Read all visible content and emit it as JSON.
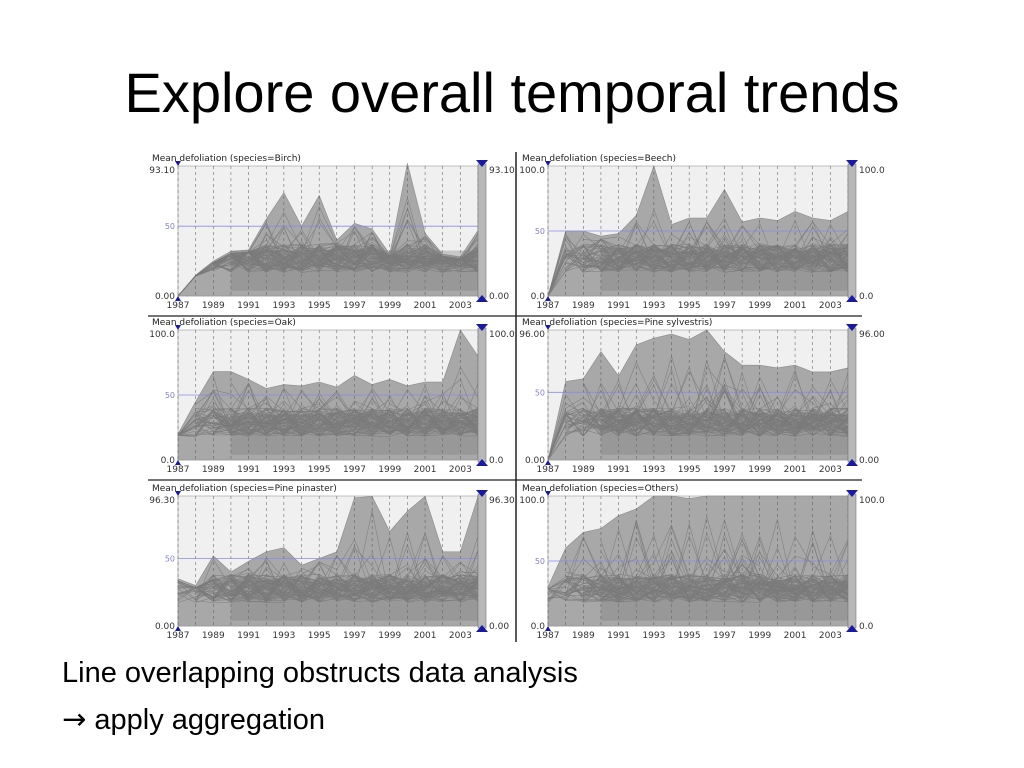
{
  "slide": {
    "title": "Explore overall temporal trends",
    "caption_line1": "Line overlapping obstructs data analysis",
    "caption_arrow": "→",
    "caption_line2": "apply aggregation"
  },
  "colors": {
    "envelope": "#a8a8a8",
    "lines": "#7a7a7a",
    "plot_bg": "#f0f0f0",
    "reference_line": "#8a8ae6",
    "slider_marker": "#1a1aa0"
  },
  "chart_data": [
    {
      "type": "line",
      "title": "Mean defoliation (species=Birch)",
      "x_tick_labels": [
        "1987",
        "1989",
        "1991",
        "1993",
        "1995",
        "1997",
        "1999",
        "2001",
        "2003"
      ],
      "xlim": [
        1987,
        2004
      ],
      "ylim": [
        0,
        93.1
      ],
      "y_tick_labels": [
        "93.10",
        "50",
        "0.00"
      ],
      "right_labels": [
        "93.10",
        "0.00"
      ],
      "reference_line": 50,
      "grid": "vertical dashed lines per year",
      "envelope_upper": [
        [
          1987,
          0
        ],
        [
          1988,
          15
        ],
        [
          1989,
          25
        ],
        [
          1990,
          32
        ],
        [
          1991,
          33
        ],
        [
          1992,
          55
        ],
        [
          1993,
          74
        ],
        [
          1994,
          50
        ],
        [
          1995,
          72
        ],
        [
          1996,
          40
        ],
        [
          1997,
          52
        ],
        [
          1998,
          48
        ],
        [
          1999,
          30
        ],
        [
          2000,
          95
        ],
        [
          2001,
          45
        ],
        [
          2002,
          30
        ],
        [
          2003,
          28
        ],
        [
          2004,
          47
        ]
      ],
      "envelope_lower": [
        [
          1987,
          0
        ],
        [
          2004,
          0
        ]
      ]
    },
    {
      "type": "line",
      "title": "Mean defoliation (species=Beech)",
      "x_tick_labels": [
        "1987",
        "1989",
        "1991",
        "1993",
        "1995",
        "1997",
        "1999",
        "2001",
        "2003"
      ],
      "xlim": [
        1987,
        2004
      ],
      "ylim": [
        0,
        100
      ],
      "y_tick_labels": [
        "100.0",
        "50",
        "0.0"
      ],
      "right_labels": [
        "100.0",
        "0.0"
      ],
      "reference_line": 50,
      "grid": "vertical dashed lines per year",
      "envelope_upper": [
        [
          1987,
          0
        ],
        [
          1988,
          50
        ],
        [
          1989,
          50
        ],
        [
          1990,
          46
        ],
        [
          1991,
          48
        ],
        [
          1992,
          62
        ],
        [
          1993,
          100
        ],
        [
          1994,
          55
        ],
        [
          1995,
          60
        ],
        [
          1996,
          60
        ],
        [
          1997,
          82
        ],
        [
          1998,
          57
        ],
        [
          1999,
          60
        ],
        [
          2000,
          58
        ],
        [
          2001,
          65
        ],
        [
          2002,
          60
        ],
        [
          2003,
          58
        ],
        [
          2004,
          65
        ]
      ],
      "envelope_lower": [
        [
          1987,
          0
        ],
        [
          2004,
          0
        ]
      ]
    },
    {
      "type": "line",
      "title": "Mean defoliation (species=Oak)",
      "x_tick_labels": [
        "1987",
        "1989",
        "1991",
        "1993",
        "1995",
        "1997",
        "1999",
        "2001",
        "2003"
      ],
      "xlim": [
        1987,
        2004
      ],
      "ylim": [
        0,
        100
      ],
      "y_tick_labels": [
        "100.0",
        "50",
        "0.0"
      ],
      "right_labels": [
        "100.0",
        "0.0"
      ],
      "reference_line": 50,
      "grid": "vertical dashed lines per year",
      "envelope_upper": [
        [
          1987,
          20
        ],
        [
          1988,
          45
        ],
        [
          1989,
          68
        ],
        [
          1990,
          68
        ],
        [
          1991,
          62
        ],
        [
          1992,
          55
        ],
        [
          1993,
          58
        ],
        [
          1994,
          57
        ],
        [
          1995,
          60
        ],
        [
          1996,
          56
        ],
        [
          1997,
          65
        ],
        [
          1998,
          58
        ],
        [
          1999,
          62
        ],
        [
          2000,
          57
        ],
        [
          2001,
          60
        ],
        [
          2002,
          60
        ],
        [
          2003,
          100
        ],
        [
          2004,
          80
        ]
      ],
      "envelope_lower": [
        [
          1987,
          0
        ],
        [
          2004,
          0
        ]
      ]
    },
    {
      "type": "line",
      "title": "Mean defoliation (species=Pine sylvestris)",
      "x_tick_labels": [
        "1987",
        "1989",
        "1991",
        "1993",
        "1995",
        "1997",
        "1999",
        "2001",
        "2003"
      ],
      "xlim": [
        1987,
        2004
      ],
      "ylim": [
        0,
        96
      ],
      "y_tick_labels": [
        "96.00",
        "50",
        "0.00"
      ],
      "right_labels": [
        "96.00",
        "0.00"
      ],
      "reference_line": 50,
      "grid": "vertical dashed lines per year",
      "envelope_upper": [
        [
          1987,
          0
        ],
        [
          1988,
          58
        ],
        [
          1989,
          60
        ],
        [
          1990,
          80
        ],
        [
          1991,
          62
        ],
        [
          1992,
          85
        ],
        [
          1993,
          90
        ],
        [
          1994,
          93
        ],
        [
          1995,
          89
        ],
        [
          1996,
          96
        ],
        [
          1997,
          80
        ],
        [
          1998,
          70
        ],
        [
          1999,
          70
        ],
        [
          2000,
          68
        ],
        [
          2001,
          70
        ],
        [
          2002,
          65
        ],
        [
          2003,
          65
        ],
        [
          2004,
          68
        ]
      ],
      "envelope_lower": [
        [
          1987,
          0
        ],
        [
          2004,
          0
        ]
      ]
    },
    {
      "type": "line",
      "title": "Mean defoliation (species=Pine pinaster)",
      "x_tick_labels": [
        "1987",
        "1989",
        "1991",
        "1993",
        "1995",
        "1997",
        "1999",
        "2001",
        "2003"
      ],
      "xlim": [
        1987,
        2004
      ],
      "ylim": [
        0,
        96.3
      ],
      "y_tick_labels": [
        "96.30",
        "50",
        "0.00"
      ],
      "right_labels": [
        "96.30",
        "0.00"
      ],
      "reference_line": 50,
      "grid": "vertical dashed lines per year",
      "envelope_upper": [
        [
          1987,
          35
        ],
        [
          1988,
          30
        ],
        [
          1989,
          52
        ],
        [
          1990,
          40
        ],
        [
          1991,
          48
        ],
        [
          1992,
          55
        ],
        [
          1993,
          58
        ],
        [
          1994,
          45
        ],
        [
          1995,
          50
        ],
        [
          1996,
          55
        ],
        [
          1997,
          95
        ],
        [
          1998,
          96
        ],
        [
          1999,
          70
        ],
        [
          2000,
          85
        ],
        [
          2001,
          96
        ],
        [
          2002,
          55
        ],
        [
          2003,
          55
        ],
        [
          2004,
          96
        ]
      ],
      "envelope_lower": [
        [
          1987,
          0
        ],
        [
          2004,
          0
        ]
      ]
    },
    {
      "type": "line",
      "title": "Mean defoliation (species=Others)",
      "x_tick_labels": [
        "1987",
        "1989",
        "1991",
        "1993",
        "1995",
        "1997",
        "1999",
        "2001",
        "2003"
      ],
      "xlim": [
        1987,
        2004
      ],
      "ylim": [
        0,
        100
      ],
      "y_tick_labels": [
        "100.0",
        "50",
        "0.0"
      ],
      "right_labels": [
        "100.0",
        "0.0"
      ],
      "reference_line": 50,
      "grid": "vertical dashed lines per year",
      "envelope_upper": [
        [
          1987,
          30
        ],
        [
          1988,
          60
        ],
        [
          1989,
          72
        ],
        [
          1990,
          75
        ],
        [
          1991,
          85
        ],
        [
          1992,
          90
        ],
        [
          1993,
          100
        ],
        [
          1994,
          100
        ],
        [
          1995,
          98
        ],
        [
          1996,
          100
        ],
        [
          1997,
          100
        ],
        [
          1998,
          100
        ],
        [
          1999,
          100
        ],
        [
          2000,
          100
        ],
        [
          2001,
          100
        ],
        [
          2002,
          100
        ],
        [
          2003,
          100
        ],
        [
          2004,
          100
        ]
      ],
      "envelope_lower": [
        [
          1987,
          0
        ],
        [
          2004,
          0
        ]
      ]
    }
  ]
}
